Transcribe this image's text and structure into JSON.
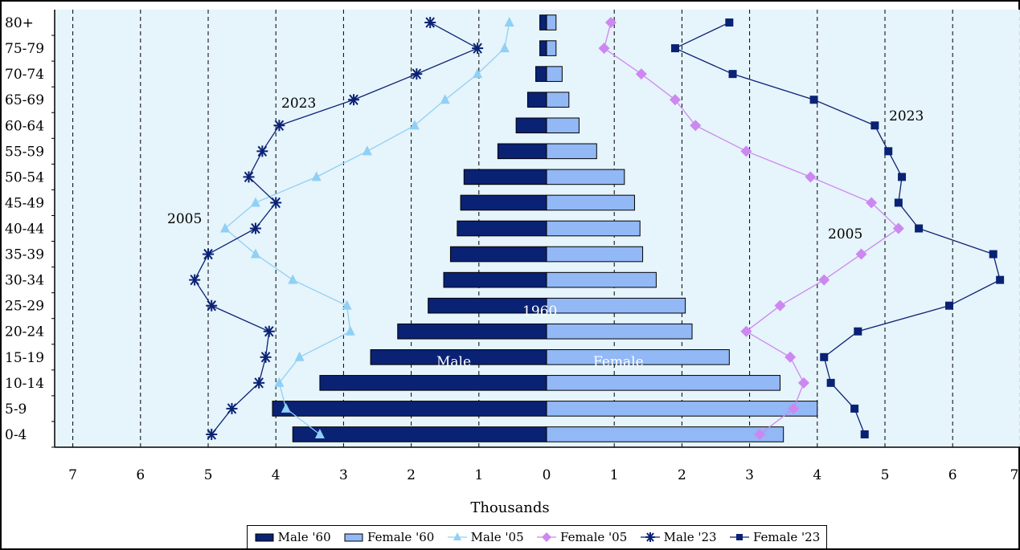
{
  "chart_data": {
    "type": "bar",
    "title": "",
    "xlabel": "Thousands",
    "ylabel": "",
    "xlim": [
      -7,
      7
    ],
    "x_ticks": [
      "7",
      "6",
      "5",
      "4",
      "3",
      "2",
      "1",
      "0",
      "1",
      "2",
      "3",
      "4",
      "5",
      "6",
      "7"
    ],
    "grid": "vertical-dashed",
    "legend_position": "bottom",
    "categories": [
      "0-4",
      "5-9",
      "10-14",
      "15-19",
      "20-24",
      "25-29",
      "30-34",
      "35-39",
      "40-44",
      "45-49",
      "50-54",
      "55-59",
      "60-64",
      "65-69",
      "70-74",
      "75-79",
      "80+"
    ],
    "series": [
      {
        "name": "Male '60",
        "kind": "bar",
        "side": "left",
        "color": "#0a2274",
        "values": [
          3.75,
          4.05,
          3.35,
          2.6,
          2.2,
          1.75,
          1.52,
          1.42,
          1.32,
          1.27,
          1.22,
          0.72,
          0.45,
          0.28,
          0.16,
          0.1,
          0.1
        ]
      },
      {
        "name": "Female '60",
        "kind": "bar",
        "side": "right",
        "color": "#92b8f5",
        "values": [
          3.5,
          4.0,
          3.45,
          2.7,
          2.15,
          2.05,
          1.62,
          1.42,
          1.38,
          1.3,
          1.15,
          0.74,
          0.48,
          0.33,
          0.23,
          0.14,
          0.14
        ]
      },
      {
        "name": "Male '05",
        "kind": "line",
        "side": "left",
        "color": "#8fd0f5",
        "marker": "triangle",
        "values": [
          3.35,
          3.85,
          3.95,
          3.65,
          2.9,
          2.95,
          3.75,
          4.3,
          4.75,
          4.3,
          3.4,
          2.65,
          1.95,
          1.5,
          1.02,
          0.62,
          0.55
        ]
      },
      {
        "name": "Female '05",
        "kind": "line",
        "side": "right",
        "color": "#cc88f0",
        "marker": "diamond",
        "values": [
          3.15,
          3.65,
          3.8,
          3.6,
          2.95,
          3.45,
          4.1,
          4.65,
          5.2,
          4.8,
          3.9,
          2.95,
          2.2,
          1.9,
          1.4,
          0.85,
          0.95
        ]
      },
      {
        "name": "Male '23",
        "kind": "line",
        "side": "left",
        "color": "#0a2274",
        "marker": "star",
        "values": [
          4.95,
          4.65,
          4.25,
          4.15,
          4.1,
          4.95,
          5.2,
          5.0,
          4.3,
          4.0,
          4.4,
          4.2,
          3.95,
          2.85,
          1.92,
          1.02,
          1.72
        ]
      },
      {
        "name": "Female '23",
        "kind": "line",
        "side": "right",
        "color": "#0a2274",
        "marker": "square",
        "values": [
          4.7,
          4.55,
          4.2,
          4.1,
          4.6,
          5.95,
          6.7,
          6.6,
          5.5,
          5.2,
          5.25,
          5.05,
          4.85,
          3.95,
          2.75,
          1.9,
          2.7
        ]
      }
    ],
    "annotations": [
      {
        "text": "2023",
        "near": "Male '23"
      },
      {
        "text": "2023",
        "near": "Female '23"
      },
      {
        "text": "2005",
        "near": "Male '05"
      },
      {
        "text": "2005",
        "near": "Female '05"
      },
      {
        "text": "1960",
        "near": "center"
      },
      {
        "text": "Male",
        "near": "Male '60"
      },
      {
        "text": "Female",
        "near": "Female '60"
      }
    ]
  }
}
